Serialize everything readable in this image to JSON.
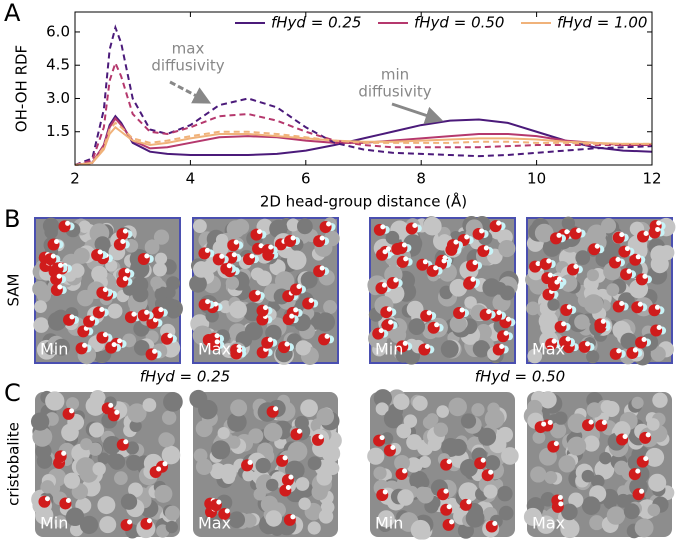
{
  "chart_data": {
    "type": "line",
    "panel_label": "A",
    "y_label": "OH-OH RDF",
    "x_label": "2D head-group distance (Å)",
    "x": [
      2,
      2.3,
      2.5,
      2.6,
      2.7,
      2.8,
      3.0,
      3.3,
      3.6,
      4.0,
      4.5,
      5.0,
      5.5,
      6.0,
      6.5,
      7.0,
      7.5,
      8.0,
      8.5,
      9.0,
      9.5,
      10.0,
      10.5,
      11.0,
      11.5,
      12.0
    ],
    "series": [
      {
        "name": "fHyd = 0.25",
        "color": "#4b1a7a",
        "values": [
          0,
          0.1,
          0.9,
          1.8,
          2.2,
          1.9,
          1.0,
          0.6,
          0.5,
          0.45,
          0.45,
          0.45,
          0.5,
          0.65,
          0.9,
          1.2,
          1.5,
          1.8,
          2.0,
          2.05,
          1.9,
          1.5,
          1.1,
          0.8,
          0.65,
          0.6
        ]
      },
      {
        "name": "fHyd = 0.50",
        "color": "#b5386d",
        "values": [
          0,
          0.1,
          0.9,
          1.7,
          2.1,
          1.8,
          1.1,
          0.75,
          0.8,
          1.0,
          1.25,
          1.3,
          1.25,
          1.1,
          1.0,
          1.0,
          1.1,
          1.2,
          1.3,
          1.4,
          1.4,
          1.3,
          1.1,
          1.0,
          0.9,
          0.9
        ]
      },
      {
        "name": "fHyd = 1.00",
        "color": "#f0b27a",
        "values": [
          0,
          0.1,
          0.7,
          1.4,
          1.7,
          1.5,
          1.1,
          0.9,
          1.0,
          1.2,
          1.4,
          1.4,
          1.3,
          1.2,
          1.1,
          1.05,
          1.05,
          1.1,
          1.15,
          1.2,
          1.2,
          1.15,
          1.05,
          1.0,
          0.95,
          0.95
        ]
      },
      {
        "color": "#4b1a7a",
        "dashed": true,
        "values": [
          0,
          0.3,
          2.5,
          5.2,
          6.2,
          5.5,
          3.0,
          1.6,
          1.4,
          1.8,
          2.7,
          3.0,
          2.6,
          1.7,
          1.0,
          0.7,
          0.55,
          0.5,
          0.45,
          0.4,
          0.45,
          0.55,
          0.65,
          0.75,
          0.8,
          0.85
        ]
      },
      {
        "color": "#b5386d",
        "dashed": true,
        "values": [
          0,
          0.2,
          1.7,
          3.8,
          4.6,
          4.0,
          2.3,
          1.5,
          1.4,
          1.7,
          2.2,
          2.3,
          2.0,
          1.5,
          1.1,
          0.9,
          0.8,
          0.8,
          0.8,
          0.8,
          0.85,
          0.9,
          0.9,
          0.9,
          0.9,
          0.9
        ]
      },
      {
        "color": "#f0b27a",
        "dashed": true,
        "values": [
          0,
          0.1,
          0.8,
          1.6,
          1.9,
          1.7,
          1.2,
          1.0,
          1.1,
          1.3,
          1.5,
          1.5,
          1.4,
          1.25,
          1.1,
          1.0,
          1.0,
          1.0,
          1.0,
          1.05,
          1.05,
          1.0,
          1.0,
          0.95,
          0.95,
          0.95
        ]
      }
    ],
    "xlim": [
      2,
      12
    ],
    "xticks": [
      2,
      4,
      6,
      8,
      10,
      12
    ],
    "ylim": [
      0,
      6.9
    ],
    "yticks": [
      1.5,
      {
        "value": 3,
        "label": "3.0"
      },
      4.5,
      {
        "value": 6,
        "label": "6.0"
      }
    ],
    "legend": "upper right",
    "annotations": [
      {
        "lines": [
          "max",
          "diffusivity"
        ]
      },
      {
        "lines": [
          "min",
          "diffusivity"
        ]
      }
    ]
  },
  "panel_b": {
    "letter": "B",
    "row_label": "SAM",
    "image_labels": [
      "Min",
      "Max",
      "Min",
      "Max"
    ]
  },
  "panel_c": {
    "letter": "C",
    "row_label": "cristobalite",
    "image_labels": [
      "Min",
      "Max",
      "Min",
      "Max"
    ],
    "group_labels": [
      "fHyd = 0.25",
      "fHyd = 0.50"
    ]
  }
}
